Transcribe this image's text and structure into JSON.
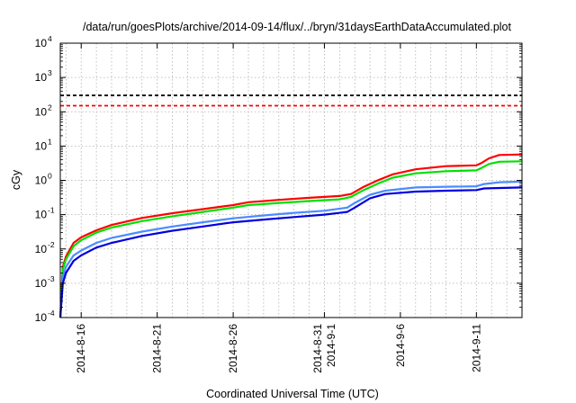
{
  "chart_data": {
    "type": "line",
    "title": "/data/run/goesPlots/archive/2014-09-14/flux/../bryn/31daysEarthDataAccumulated.plot",
    "xlabel": "Coordinated Universal Time (UTC)",
    "ylabel": "cGy",
    "yscale": "log",
    "ylim": [
      0.0001,
      10000
    ],
    "xlim": [
      "2014-08-14T15:00",
      "2014-09-14T00:00"
    ],
    "grid": true,
    "y_ticks": [
      {
        "value": 0.0001,
        "label": "10",
        "exp": "-4"
      },
      {
        "value": 0.001,
        "label": "10",
        "exp": "-3"
      },
      {
        "value": 0.01,
        "label": "10",
        "exp": "-2"
      },
      {
        "value": 0.1,
        "label": "10",
        "exp": "-1"
      },
      {
        "value": 1,
        "label": "10",
        "exp": "0"
      },
      {
        "value": 10,
        "label": "10",
        "exp": "1"
      },
      {
        "value": 100,
        "label": "10",
        "exp": "2"
      },
      {
        "value": 1000,
        "label": "10",
        "exp": "3"
      },
      {
        "value": 10000,
        "label": "10",
        "exp": "4"
      }
    ],
    "x_ticks": [
      {
        "value": "2014-08-16",
        "lines": [
          "2014-8-16"
        ]
      },
      {
        "value": "2014-08-21",
        "lines": [
          "2014-8-21"
        ]
      },
      {
        "value": "2014-08-26",
        "lines": [
          "2014-8-26"
        ]
      },
      {
        "value": "2014-09-01",
        "lines": [
          "2014-8-31",
          "2014-9-1"
        ]
      },
      {
        "value": "2014-09-06",
        "lines": [
          "2014-9-6"
        ]
      },
      {
        "value": "2014-09-11",
        "lines": [
          "2014-9-11"
        ]
      }
    ],
    "thresholds": [
      {
        "value": 300,
        "color": "#000000"
      },
      {
        "value": 150,
        "color": "#ff0000"
      }
    ],
    "series": [
      {
        "color": "#ff0000",
        "points": [
          [
            "2014-08-14T15:00",
            0.0001
          ],
          [
            "2014-08-14T19:00",
            0.003
          ],
          [
            "2014-08-15T00:00",
            0.006
          ],
          [
            "2014-08-15T12:00",
            0.015
          ],
          [
            "2014-08-16T00:00",
            0.022
          ],
          [
            "2014-08-17T00:00",
            0.035
          ],
          [
            "2014-08-18T00:00",
            0.05
          ],
          [
            "2014-08-20T00:00",
            0.08
          ],
          [
            "2014-08-22T00:00",
            0.11
          ],
          [
            "2014-08-24T00:00",
            0.145
          ],
          [
            "2014-08-26T00:00",
            0.19
          ],
          [
            "2014-08-27T00:00",
            0.23
          ],
          [
            "2014-08-29T00:00",
            0.27
          ],
          [
            "2014-08-31T00:00",
            0.31
          ],
          [
            "2014-09-02T00:00",
            0.35
          ],
          [
            "2014-09-02T18:00",
            0.4
          ],
          [
            "2014-09-03T12:00",
            0.62
          ],
          [
            "2014-09-04T12:00",
            1.0
          ],
          [
            "2014-09-05T12:00",
            1.5
          ],
          [
            "2014-09-07T00:00",
            2.1
          ],
          [
            "2014-09-09T00:00",
            2.6
          ],
          [
            "2014-09-11T00:00",
            2.75
          ],
          [
            "2014-09-11T08:00",
            3.2
          ],
          [
            "2014-09-11T20:00",
            4.4
          ],
          [
            "2014-09-12T12:00",
            5.5
          ],
          [
            "2014-09-14T00:00",
            5.7
          ]
        ]
      },
      {
        "color": "#00e000",
        "points": [
          [
            "2014-08-14T15:00",
            0.0001
          ],
          [
            "2014-08-14T19:00",
            0.0025
          ],
          [
            "2014-08-15T00:00",
            0.005
          ],
          [
            "2014-08-15T12:00",
            0.012
          ],
          [
            "2014-08-16T00:00",
            0.018
          ],
          [
            "2014-08-17T00:00",
            0.03
          ],
          [
            "2014-08-18T00:00",
            0.042
          ],
          [
            "2014-08-20T00:00",
            0.065
          ],
          [
            "2014-08-22T00:00",
            0.09
          ],
          [
            "2014-08-24T00:00",
            0.12
          ],
          [
            "2014-08-26T00:00",
            0.16
          ],
          [
            "2014-08-27T00:00",
            0.19
          ],
          [
            "2014-08-29T00:00",
            0.22
          ],
          [
            "2014-08-31T00:00",
            0.25
          ],
          [
            "2014-09-02T00:00",
            0.28
          ],
          [
            "2014-09-02T18:00",
            0.33
          ],
          [
            "2014-09-03T12:00",
            0.5
          ],
          [
            "2014-09-04T12:00",
            0.8
          ],
          [
            "2014-09-05T12:00",
            1.2
          ],
          [
            "2014-09-07T00:00",
            1.6
          ],
          [
            "2014-09-09T00:00",
            1.85
          ],
          [
            "2014-09-11T00:00",
            1.95
          ],
          [
            "2014-09-11T08:00",
            2.3
          ],
          [
            "2014-09-11T20:00",
            3.0
          ],
          [
            "2014-09-12T12:00",
            3.5
          ],
          [
            "2014-09-14T00:00",
            3.6
          ]
        ]
      },
      {
        "color": "#4b8cff",
        "points": [
          [
            "2014-08-14T15:00",
            0.0001
          ],
          [
            "2014-08-14T19:00",
            0.0015
          ],
          [
            "2014-08-15T00:00",
            0.003
          ],
          [
            "2014-08-15T12:00",
            0.0065
          ],
          [
            "2014-08-16T00:00",
            0.009
          ],
          [
            "2014-08-17T00:00",
            0.015
          ],
          [
            "2014-08-18T00:00",
            0.021
          ],
          [
            "2014-08-20T00:00",
            0.032
          ],
          [
            "2014-08-22T00:00",
            0.045
          ],
          [
            "2014-08-24T00:00",
            0.06
          ],
          [
            "2014-08-26T00:00",
            0.078
          ],
          [
            "2014-08-28T00:00",
            0.095
          ],
          [
            "2014-08-30T00:00",
            0.113
          ],
          [
            "2014-09-01T00:00",
            0.13
          ],
          [
            "2014-09-02T12:00",
            0.16
          ],
          [
            "2014-09-03T00:00",
            0.22
          ],
          [
            "2014-09-04T00:00",
            0.38
          ],
          [
            "2014-09-05T00:00",
            0.5
          ],
          [
            "2014-09-07T00:00",
            0.62
          ],
          [
            "2014-09-09T00:00",
            0.65
          ],
          [
            "2014-09-11T00:00",
            0.67
          ],
          [
            "2014-09-11T12:00",
            0.78
          ],
          [
            "2014-09-12T12:00",
            0.88
          ],
          [
            "2014-09-14T00:00",
            0.92
          ]
        ]
      },
      {
        "color": "#0000e0",
        "points": [
          [
            "2014-08-14T15:00",
            0.0001
          ],
          [
            "2014-08-14T19:00",
            0.001
          ],
          [
            "2014-08-15T00:00",
            0.002
          ],
          [
            "2014-08-15T12:00",
            0.0045
          ],
          [
            "2014-08-16T00:00",
            0.0065
          ],
          [
            "2014-08-17T00:00",
            0.011
          ],
          [
            "2014-08-18T00:00",
            0.015
          ],
          [
            "2014-08-20T00:00",
            0.024
          ],
          [
            "2014-08-22T00:00",
            0.034
          ],
          [
            "2014-08-24T00:00",
            0.045
          ],
          [
            "2014-08-26T00:00",
            0.06
          ],
          [
            "2014-08-28T00:00",
            0.072
          ],
          [
            "2014-08-30T00:00",
            0.085
          ],
          [
            "2014-09-01T00:00",
            0.1
          ],
          [
            "2014-09-02T12:00",
            0.12
          ],
          [
            "2014-09-03T00:00",
            0.16
          ],
          [
            "2014-09-04T00:00",
            0.3
          ],
          [
            "2014-09-05T00:00",
            0.4
          ],
          [
            "2014-09-07T00:00",
            0.47
          ],
          [
            "2014-09-09T00:00",
            0.5
          ],
          [
            "2014-09-11T00:00",
            0.52
          ],
          [
            "2014-09-11T12:00",
            0.58
          ],
          [
            "2014-09-12T12:00",
            0.6
          ],
          [
            "2014-09-14T00:00",
            0.62
          ]
        ]
      }
    ]
  }
}
